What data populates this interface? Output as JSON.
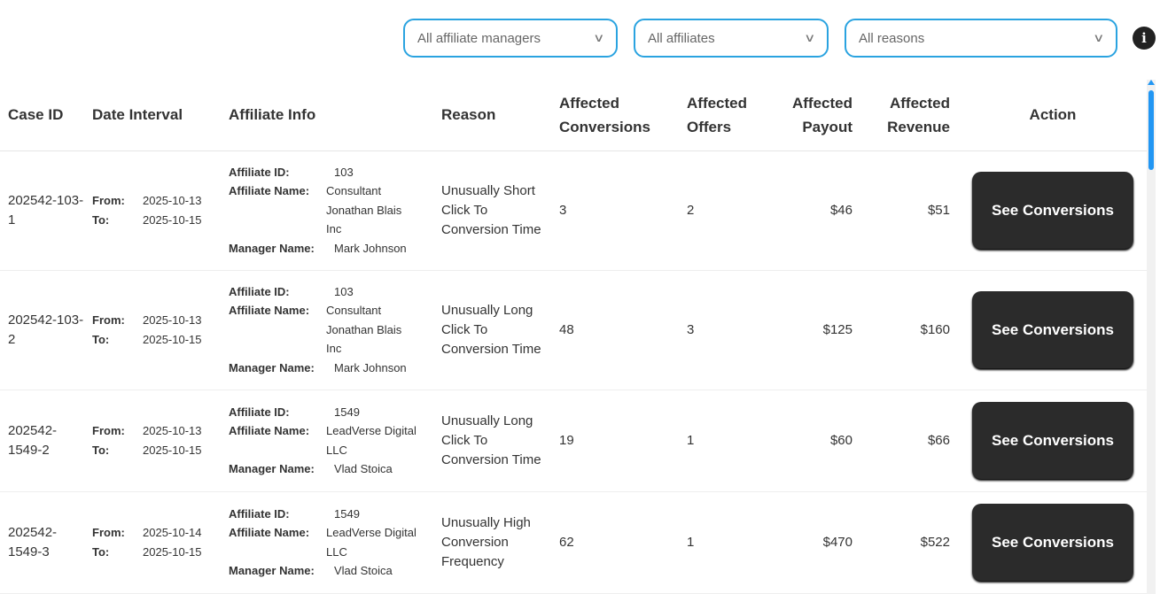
{
  "filters": {
    "managers": "All affiliate managers",
    "affiliates": "All affiliates",
    "reasons": "All reasons"
  },
  "columns": {
    "case_id": "Case ID",
    "date": "Date Interval",
    "affiliate": "Affiliate Info",
    "reason": "Reason",
    "conversions": "Affected Conversions",
    "offers": "Affected Offers",
    "payout": "Affected Payout",
    "revenue": "Affected Revenue",
    "action": "Action"
  },
  "labels": {
    "from": "From:",
    "to": "To:",
    "aff_id": "Affiliate ID:",
    "aff_name": "Affiliate Name:",
    "manager": "Manager Name:"
  },
  "rows": [
    {
      "case_id": "202542-103-1",
      "from": "2025-10-13",
      "to": "2025-10-15",
      "aff_id": "103",
      "aff_name": "Consultant Jonathan Blais Inc",
      "manager": "Mark Johnson",
      "reason": "Unusually Short Click To Conversion Time",
      "conversions": "3",
      "offers": "2",
      "payout": "$46",
      "revenue": "$51",
      "action": "See Conversions"
    },
    {
      "case_id": "202542-103-2",
      "from": "2025-10-13",
      "to": "2025-10-15",
      "aff_id": "103",
      "aff_name": "Consultant Jonathan Blais Inc",
      "manager": "Mark Johnson",
      "reason": "Unusually Long Click To Conversion Time",
      "conversions": "48",
      "offers": "3",
      "payout": "$125",
      "revenue": "$160",
      "action": "See Conversions"
    },
    {
      "case_id": "202542-1549-2",
      "from": "2025-10-13",
      "to": "2025-10-15",
      "aff_id": "1549",
      "aff_name": "LeadVerse Digital LLC",
      "manager": "Vlad Stoica",
      "reason": "Unusually Long Click To Conversion Time",
      "conversions": "19",
      "offers": "1",
      "payout": "$60",
      "revenue": "$66",
      "action": "See Conversions"
    },
    {
      "case_id": "202542-1549-3",
      "from": "2025-10-14",
      "to": "2025-10-15",
      "aff_id": "1549",
      "aff_name": "LeadVerse Digital LLC",
      "manager": "Vlad Stoica",
      "reason": "Unusually High Conversion Frequency",
      "conversions": "62",
      "offers": "1",
      "payout": "$470",
      "revenue": "$522",
      "action": "See Conversions"
    }
  ]
}
